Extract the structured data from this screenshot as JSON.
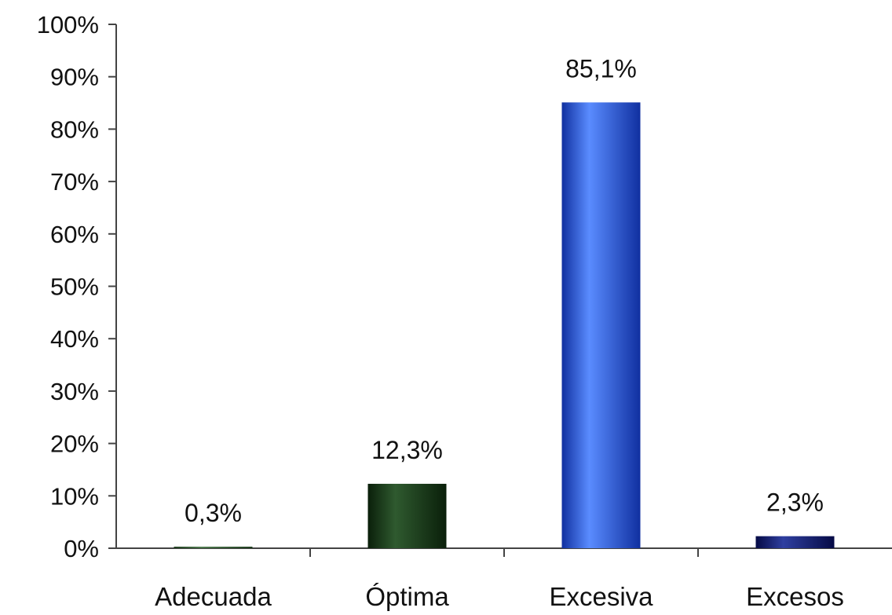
{
  "chart_data": {
    "type": "bar",
    "categories": [
      "Adecuada",
      "Óptima",
      "Excesiva",
      "Excesos"
    ],
    "values": [
      0.3,
      12.3,
      85.1,
      2.3
    ],
    "value_labels": [
      "0,3%",
      "12,3%",
      "85,1%",
      "2,3%"
    ],
    "ylim": [
      0,
      100
    ],
    "yticks": [
      0,
      10,
      20,
      30,
      40,
      50,
      60,
      70,
      80,
      90,
      100
    ],
    "ytick_labels": [
      "0%",
      "10%",
      "20%",
      "30%",
      "40%",
      "50%",
      "60%",
      "70%",
      "80%",
      "90%",
      "100%"
    ],
    "title": "",
    "xlabel": "",
    "ylabel": "",
    "grid": false,
    "legend": "none",
    "bar_colors": [
      {
        "light": "#4f7a4f",
        "dark": "#1f3d1f"
      },
      {
        "light": "#2f5a2f",
        "dark": "#0a1f0a"
      },
      {
        "light": "#5a8cff",
        "dark": "#1030a0"
      },
      {
        "light": "#2f3fa0",
        "dark": "#050a45"
      }
    ],
    "axis_color": "#444444"
  }
}
